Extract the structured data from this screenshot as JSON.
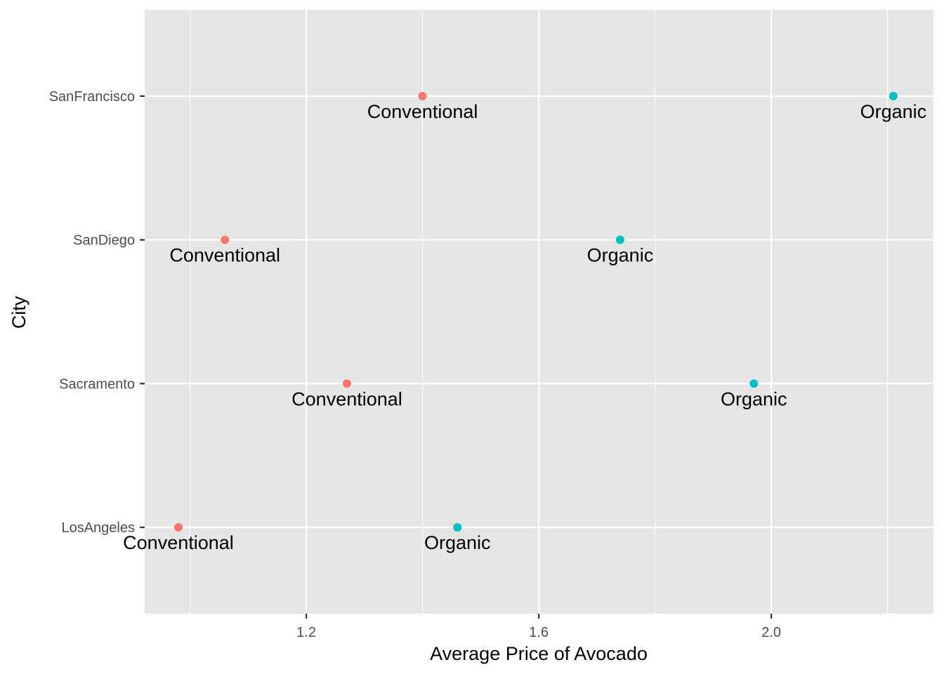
{
  "chart_data": {
    "type": "scatter",
    "title": "",
    "xlabel": "Average Price of Avocado",
    "ylabel": "City",
    "xlim": [
      0.922,
      2.279
    ],
    "x_ticks": [
      1.2,
      1.6,
      2.0
    ],
    "x_tick_labels": [
      "1.2",
      "1.6",
      "2.0"
    ],
    "x_minor_ticks": [
      1.0,
      1.4,
      1.8,
      2.2
    ],
    "categories": [
      "LosAngeles",
      "Sacramento",
      "SanDiego",
      "SanFrancisco"
    ],
    "grid": true,
    "legend": "none",
    "colors": {
      "conventional": "#F8766D",
      "organic": "#00BFC4",
      "panel": "#E5E5E5"
    },
    "series": [
      {
        "key": "conventional",
        "points": [
          {
            "city": "LosAngeles",
            "x": 0.98,
            "label": "Conventional"
          },
          {
            "city": "Sacramento",
            "x": 1.27,
            "label": "Conventional"
          },
          {
            "city": "SanDiego",
            "x": 1.06,
            "label": "Conventional"
          },
          {
            "city": "SanFrancisco",
            "x": 1.4,
            "label": "Conventional"
          }
        ]
      },
      {
        "key": "organic",
        "points": [
          {
            "city": "LosAngeles",
            "x": 1.46,
            "label": "Organic"
          },
          {
            "city": "Sacramento",
            "x": 1.97,
            "label": "Organic"
          },
          {
            "city": "SanDiego",
            "x": 1.74,
            "label": "Organic"
          },
          {
            "city": "SanFrancisco",
            "x": 2.21,
            "label": "Organic"
          }
        ]
      }
    ]
  }
}
